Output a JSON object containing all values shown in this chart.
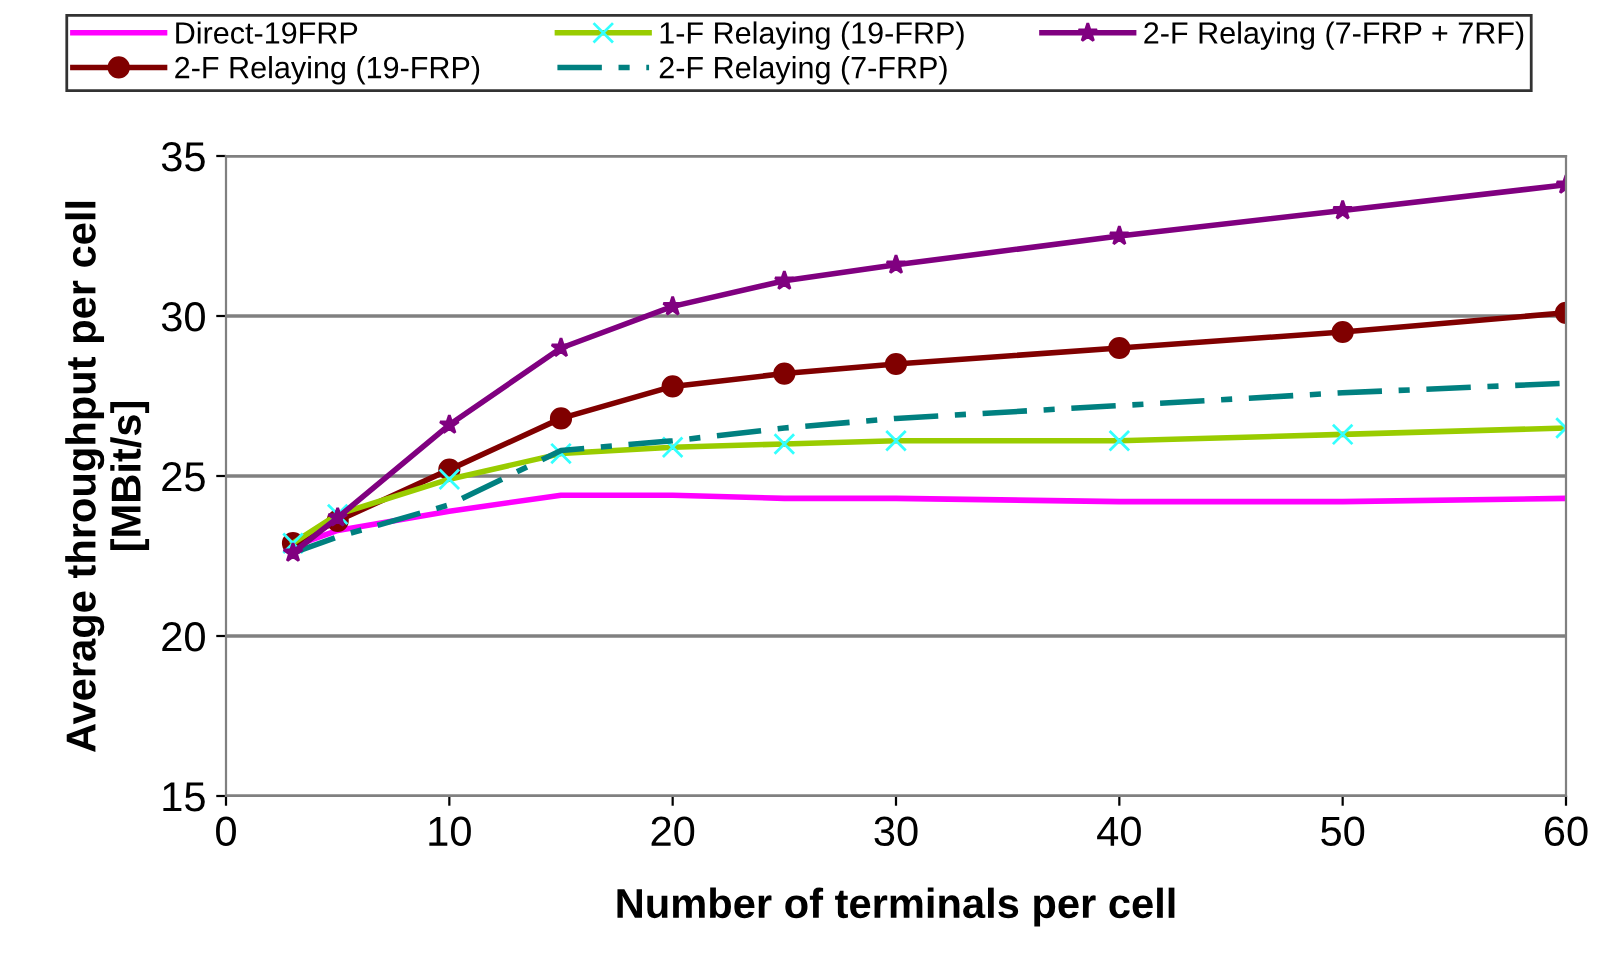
{
  "chart_data": {
    "type": "line",
    "xlabel": "Number of terminals per cell",
    "ylabel": "Average throughput per cell\n[MBit/s]",
    "x": [
      3,
      5,
      10,
      15,
      20,
      25,
      30,
      40,
      50,
      60
    ],
    "series": [
      {
        "name": "Direct-19FRP",
        "color": "#ff00ff",
        "marker": "none",
        "line_style": "solid",
        "values": [
          22.8,
          23.3,
          23.9,
          24.4,
          24.4,
          24.3,
          24.3,
          24.2,
          24.2,
          24.3
        ]
      },
      {
        "name": "2-F Relaying (19-FRP)",
        "color": "#800000",
        "marker": "circle",
        "line_style": "solid",
        "values": [
          22.9,
          23.6,
          25.2,
          26.8,
          27.8,
          28.2,
          28.5,
          29.0,
          29.5,
          30.1
        ]
      },
      {
        "name": "1-F Relaying (19-FRP)",
        "color": "#99cc00",
        "marker": "cross",
        "line_style": "solid",
        "values": [
          22.9,
          23.8,
          24.9,
          25.7,
          25.9,
          26.0,
          26.1,
          26.1,
          26.3,
          26.5
        ]
      },
      {
        "name": "2-F Relaying (7-FRP)",
        "color": "#008080",
        "marker": "none",
        "line_style": "dashdot",
        "values": [
          22.6,
          23.1,
          24.1,
          25.8,
          26.1,
          26.5,
          26.8,
          27.2,
          27.6,
          27.9
        ]
      },
      {
        "name": "2-F Relaying (7-FRP + 7RF)",
        "color": "#800080",
        "marker": "star",
        "line_style": "solid",
        "values": [
          22.6,
          23.7,
          26.6,
          29.0,
          30.3,
          31.1,
          31.6,
          32.5,
          33.3,
          34.1
        ]
      }
    ],
    "xlim": [
      0,
      60
    ],
    "xticks": [
      0,
      10,
      20,
      30,
      40,
      50,
      60
    ],
    "ylim": [
      15,
      35
    ],
    "yticks": [
      15,
      20,
      25,
      30,
      35
    ],
    "grid": "y",
    "legend": "top"
  }
}
